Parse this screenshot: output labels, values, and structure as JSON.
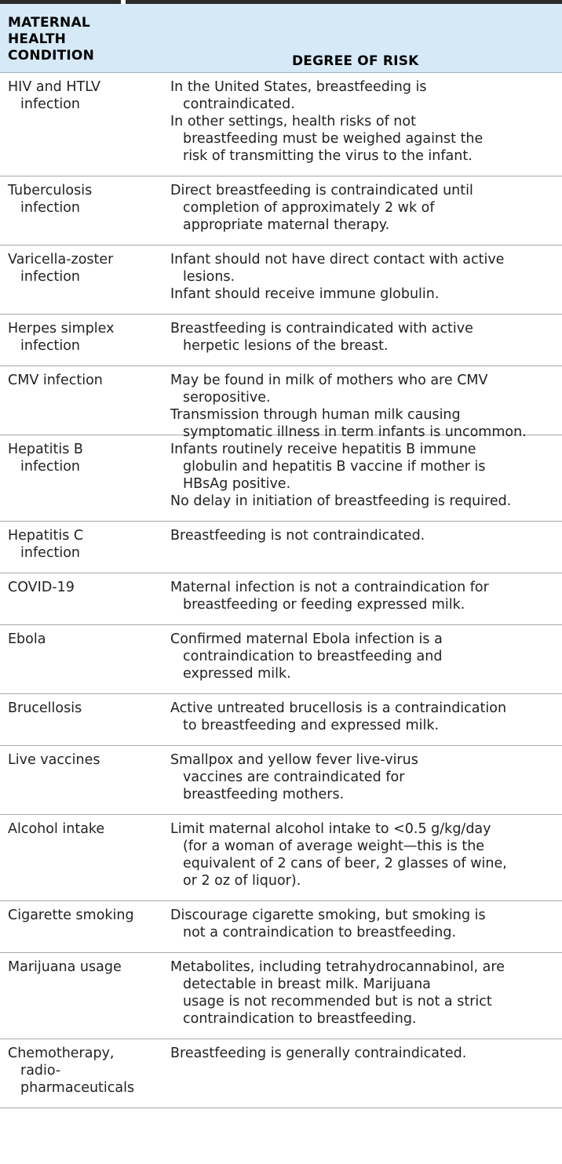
{
  "header": {
    "condition_lines": [
      "MATERNAL",
      "HEALTH",
      "CONDITION"
    ],
    "risk": "DEGREE OF RISK"
  },
  "rows": [
    {
      "condition": [
        "HIV and HTLV",
        "infection"
      ],
      "risk": [
        [
          "In the United States, breastfeeding is",
          "contraindicated."
        ],
        [
          "In other settings, health risks of not",
          "breastfeeding must be weighed against the",
          "risk of transmitting the virus to the infant."
        ]
      ]
    },
    {
      "condition": [
        "Tuberculosis",
        "infection"
      ],
      "risk": [
        [
          "Direct breastfeeding is contraindicated until",
          "completion of approximately 2 wk of",
          "appropriate maternal therapy."
        ]
      ]
    },
    {
      "condition": [
        "Varicella-zoster",
        "infection"
      ],
      "risk": [
        [
          "Infant should not have direct contact with active",
          "lesions."
        ],
        [
          "Infant should receive immune globulin."
        ]
      ]
    },
    {
      "condition": [
        "Herpes simplex",
        "infection"
      ],
      "risk": [
        [
          "Breastfeeding is contraindicated with active",
          "herpetic lesions of the breast."
        ]
      ]
    },
    {
      "condition": [
        "CMV infection"
      ],
      "risk": [
        [
          "May be found in milk of mothers who are CMV",
          "seropositive."
        ],
        [
          "Transmission through human milk causing",
          "symptomatic illness in term infants is uncommon."
        ]
      ]
    },
    {
      "condition": [
        "Hepatitis B",
        "infection"
      ],
      "risk": [
        [
          "Infants routinely receive hepatitis B immune",
          "globulin and hepatitis B vaccine if mother is",
          "HBsAg positive."
        ],
        [
          "No delay in initiation of breastfeeding is required."
        ]
      ]
    },
    {
      "condition": [
        "Hepatitis C",
        "infection"
      ],
      "risk": [
        [
          "Breastfeeding is not contraindicated."
        ]
      ]
    },
    {
      "condition": [
        "COVID-19"
      ],
      "risk": [
        [
          "Maternal infection is not a contraindication for",
          "breastfeeding or feeding expressed milk."
        ]
      ]
    },
    {
      "condition": [
        "Ebola"
      ],
      "risk": [
        [
          "Confirmed maternal Ebola infection is a",
          "contraindication to breastfeeding and",
          "expressed milk."
        ]
      ]
    },
    {
      "condition": [
        "Brucellosis"
      ],
      "risk": [
        [
          "Active untreated brucellosis is a contraindication",
          "to breastfeeding and expressed milk."
        ]
      ]
    },
    {
      "condition": [
        "Live vaccines"
      ],
      "risk": [
        [
          "Smallpox and yellow fever live-virus",
          "vaccines are contraindicated for",
          "breastfeeding mothers."
        ]
      ]
    },
    {
      "condition": [
        "Alcohol intake"
      ],
      "risk": [
        [
          "Limit maternal alcohol intake to <0.5 g/kg/day",
          "(for a woman of average weight—this is the",
          "equivalent of 2 cans of beer, 2 glasses of wine,",
          "or 2 oz of liquor)."
        ]
      ]
    },
    {
      "condition": [
        "Cigarette smoking"
      ],
      "risk": [
        [
          "Discourage cigarette smoking, but smoking is",
          "not a contraindication to breastfeeding."
        ]
      ]
    },
    {
      "condition": [
        "Marijuana usage"
      ],
      "risk": [
        [
          "Metabolites, including tetrahydrocannabinol, are",
          "detectable in breast milk. Marijuana",
          "usage is not recommended but is not a strict",
          "contraindication to breastfeeding."
        ]
      ]
    },
    {
      "condition": [
        "Chemotherapy,",
        "radio-",
        "pharmaceuticals"
      ],
      "risk": [
        [
          "Breastfeeding is generally contraindicated."
        ]
      ]
    }
  ]
}
